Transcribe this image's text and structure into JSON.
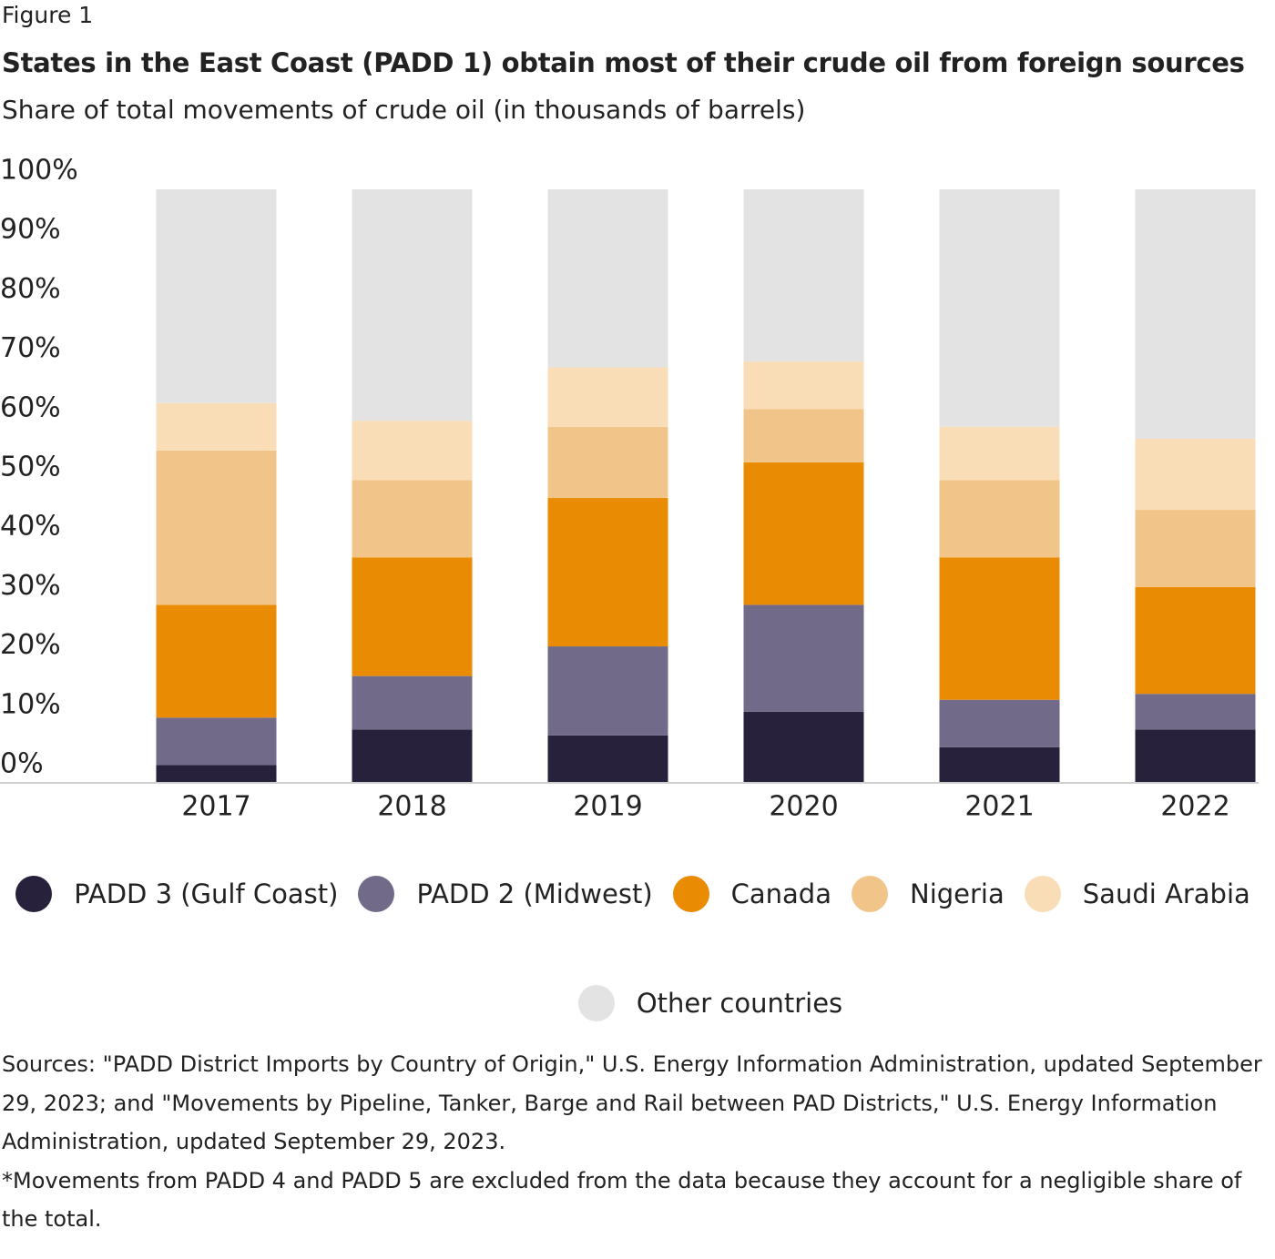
{
  "chart_data": {
    "type": "stacked-bar",
    "label": "Figure 1",
    "title": "States in the East Coast (PADD 1) obtain most of their crude oil from foreign sources",
    "subtitle": "Share of total movements of crude oil (in thousands of barrels)",
    "categories": [
      "2017",
      "2018",
      "2019",
      "2020",
      "2021",
      "2022"
    ],
    "series": [
      {
        "name": "PADD 3 (Gulf Coast)",
        "color": "#27213c",
        "values": [
          3,
          9,
          8,
          12,
          6,
          9
        ]
      },
      {
        "name": "PADD 2 (Midwest)",
        "color": "#726a89",
        "values": [
          8,
          9,
          15,
          18,
          8,
          6
        ]
      },
      {
        "name": "Canada",
        "color": "#ea8b04",
        "values": [
          19,
          20,
          25,
          24,
          24,
          18
        ]
      },
      {
        "name": "Nigeria",
        "color": "#f1c589",
        "values": [
          26,
          13,
          12,
          9,
          13,
          13
        ]
      },
      {
        "name": "Saudi Arabia",
        "color": "#f9ddb6",
        "values": [
          8,
          10,
          10,
          8,
          9,
          12
        ]
      },
      {
        "name": "Other countries",
        "color": "#e3e3e3",
        "values": [
          36,
          39,
          30,
          29,
          40,
          42
        ]
      }
    ],
    "ylim": [
      0,
      100
    ],
    "yticks": [
      {
        "value": 0,
        "label": "0%"
      },
      {
        "value": 10,
        "label": "10%"
      },
      {
        "value": 20,
        "label": "20%"
      },
      {
        "value": 30,
        "label": "30%"
      },
      {
        "value": 40,
        "label": "40%"
      },
      {
        "value": 50,
        "label": "50%"
      },
      {
        "value": 60,
        "label": "60%"
      },
      {
        "value": 70,
        "label": "70%"
      },
      {
        "value": 80,
        "label": "80%"
      },
      {
        "value": 90,
        "label": "90%"
      },
      {
        "value": 100,
        "label": "100%"
      }
    ],
    "grid": false,
    "source": "Sources: \"PADD District Imports by Country of Origin,\" U.S. Energy Information Administration, updated September 29, 2023; and \"Movements by Pipeline, Tanker, Barge and Rail between PAD Districts,\" U.S. Energy Information Administration, updated September 29, 2023.",
    "note": "*Movements from PADD 4 and PADD 5 are excluded from the data because they account for a negligible share of the total."
  }
}
